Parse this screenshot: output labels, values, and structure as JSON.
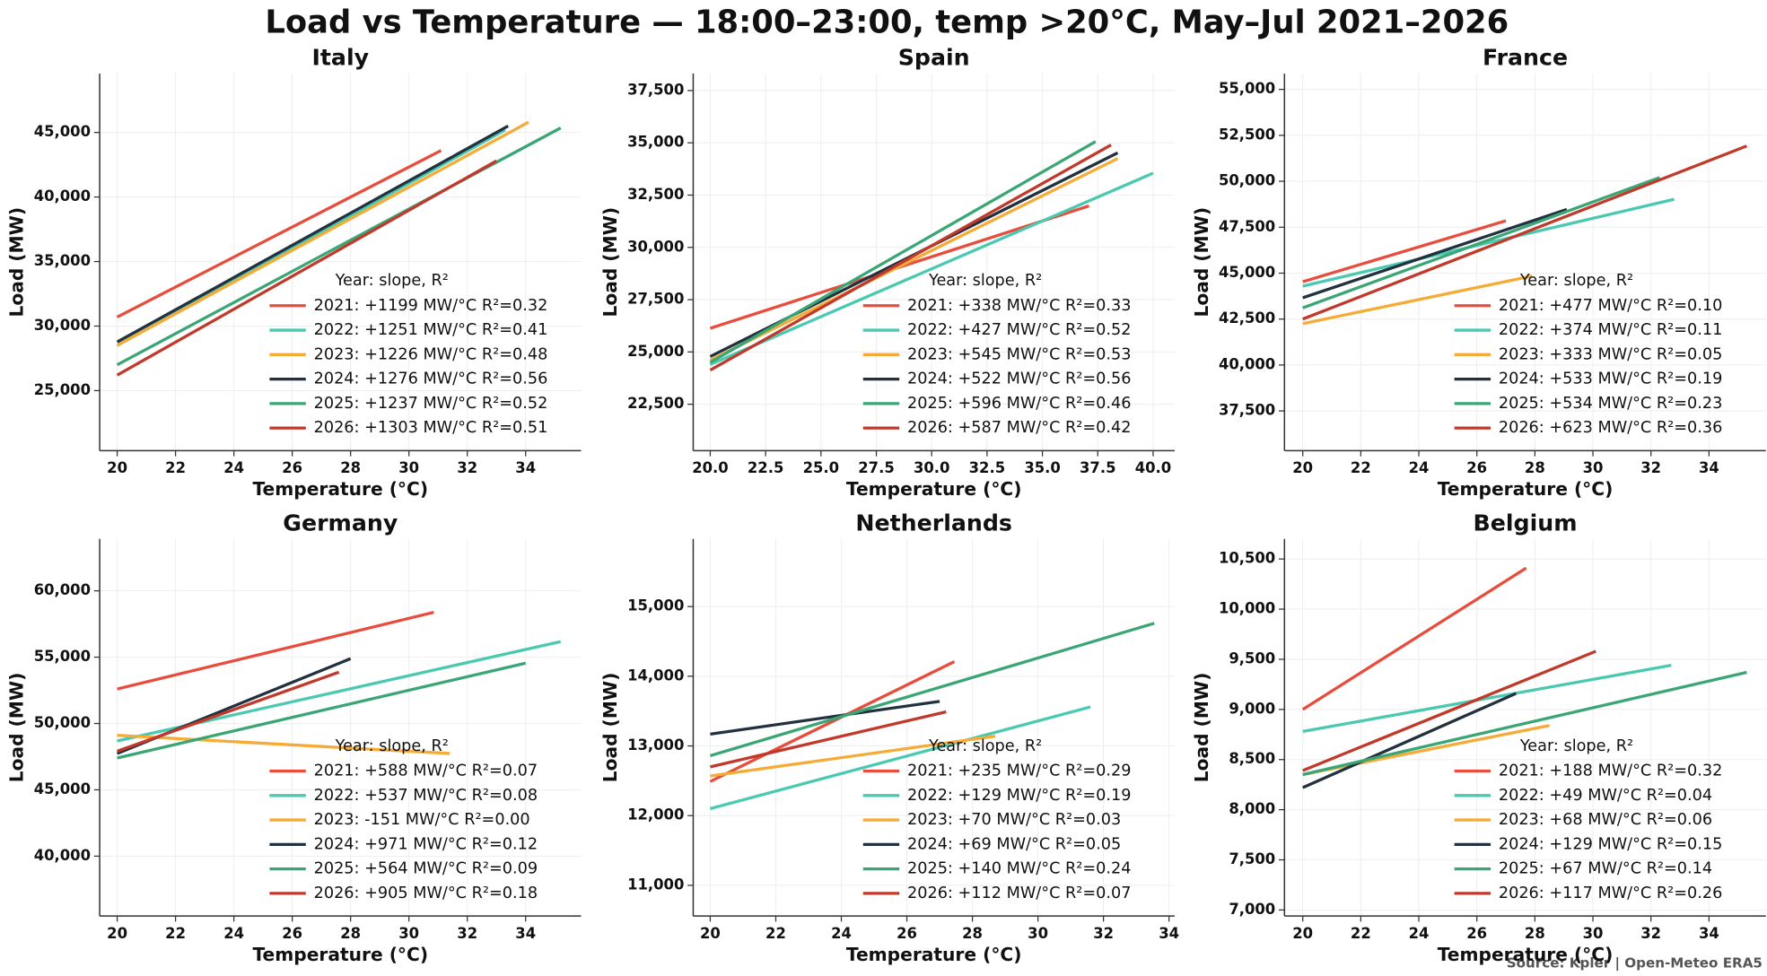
{
  "title": "Load vs Temperature — 18:00–23:00, temp >20°C, May–Jul 2021–2026",
  "source": "Source: Kpler | Open-Meteo ERA5",
  "chart_data": [
    {
      "type": "line",
      "title": "Italy",
      "xlabel": "Temperature (°C)",
      "ylabel": "Load (MW)",
      "xlim": [
        19.4,
        35.9
      ],
      "ylim": [
        20350,
        49560
      ],
      "xticks": [
        20,
        22,
        24,
        26,
        28,
        30,
        32,
        34
      ],
      "yticks": [
        {
          "value": 25000,
          "label": "25,000"
        },
        {
          "value": 30000,
          "label": "30,000"
        },
        {
          "value": 35000,
          "label": "35,000"
        },
        {
          "value": 40000,
          "label": "40,000"
        },
        {
          "value": 45000,
          "label": "45,000"
        }
      ],
      "grid": true,
      "legend": "lower right",
      "legend_title": "Year: slope, R²",
      "series": [
        {
          "name": "2021: +1199 MW/°C  R²=0.32",
          "color": "#e74c3c",
          "x": [
            20.0,
            31.1
          ],
          "values": [
            30700,
            43600
          ]
        },
        {
          "name": "2022: +1251 MW/°C  R²=0.41",
          "color": "#48c9b0",
          "x": [
            20.0,
            33.3
          ],
          "values": [
            28500,
            45200
          ]
        },
        {
          "name": "2023: +1226 MW/°C  R²=0.48",
          "color": "#f5ab35",
          "x": [
            20.0,
            34.1
          ],
          "values": [
            28500,
            45800
          ]
        },
        {
          "name": "2024: +1276 MW/°C  R²=0.56",
          "color": "#22313f",
          "x": [
            20.0,
            33.4
          ],
          "values": [
            28770,
            45500
          ]
        },
        {
          "name": "2025: +1237 MW/°C  R²=0.52",
          "color": "#3aa675",
          "x": [
            20.0,
            35.2
          ],
          "values": [
            27000,
            45350
          ]
        },
        {
          "name": "2026: +1303 MW/°C  R²=0.51",
          "color": "#c0392b",
          "x": [
            20.0,
            33.0
          ],
          "values": [
            26200,
            42800
          ]
        }
      ]
    },
    {
      "type": "line",
      "title": "Spain",
      "xlabel": "Temperature (°C)",
      "ylabel": "Load (MW)",
      "xlim": [
        19.23,
        40.97
      ],
      "ylim": [
        20280,
        38310
      ],
      "xticks": [
        {
          "value": 20,
          "label": "20.0"
        },
        {
          "value": 22.5,
          "label": "22.5"
        },
        {
          "value": 25,
          "label": "25.0"
        },
        {
          "value": 27.5,
          "label": "27.5"
        },
        {
          "value": 30,
          "label": "30.0"
        },
        {
          "value": 32.5,
          "label": "32.5"
        },
        {
          "value": 35,
          "label": "35.0"
        },
        {
          "value": 37.5,
          "label": "37.5"
        },
        {
          "value": 40,
          "label": "40.0"
        }
      ],
      "yticks": [
        {
          "value": 22500,
          "label": "22,500"
        },
        {
          "value": 25000,
          "label": "25,000"
        },
        {
          "value": 27500,
          "label": "27,500"
        },
        {
          "value": 30000,
          "label": "30,000"
        },
        {
          "value": 32500,
          "label": "32,500"
        },
        {
          "value": 35000,
          "label": "35,000"
        },
        {
          "value": 37500,
          "label": "37,500"
        }
      ],
      "grid": true,
      "legend": "lower right",
      "legend_title": "Year: slope, R²",
      "series": [
        {
          "name": "2021: +338 MW/°C  R²=0.33",
          "color": "#e74c3c",
          "x": [
            20.0,
            37.1
          ],
          "values": [
            26130,
            31980
          ]
        },
        {
          "name": "2022: +427 MW/°C  R²=0.52",
          "color": "#48c9b0",
          "x": [
            20.0,
            40.0
          ],
          "values": [
            24400,
            33550
          ]
        },
        {
          "name": "2023: +545 MW/°C  R²=0.53",
          "color": "#f5ab35",
          "x": [
            20.0,
            38.4
          ],
          "values": [
            24610,
            34250
          ]
        },
        {
          "name": "2024: +522 MW/°C  R²=0.56",
          "color": "#22313f",
          "x": [
            20.0,
            38.4
          ],
          "values": [
            24780,
            34520
          ]
        },
        {
          "name": "2025: +596 MW/°C  R²=0.46",
          "color": "#3aa675",
          "x": [
            20.0,
            37.4
          ],
          "values": [
            24500,
            35060
          ]
        },
        {
          "name": "2026: +587 MW/°C  R²=0.42",
          "color": "#c0392b",
          "x": [
            20.0,
            38.1
          ],
          "values": [
            24130,
            34900
          ]
        }
      ]
    },
    {
      "type": "line",
      "title": "France",
      "xlabel": "Temperature (°C)",
      "ylabel": "Load (MW)",
      "xlim": [
        19.37,
        35.96
      ],
      "ylim": [
        35340,
        55860
      ],
      "xticks": [
        20,
        22,
        24,
        26,
        28,
        30,
        32,
        34
      ],
      "yticks": [
        {
          "value": 37500,
          "label": "37,500"
        },
        {
          "value": 40000,
          "label": "40,000"
        },
        {
          "value": 42500,
          "label": "42,500"
        },
        {
          "value": 45000,
          "label": "45,000"
        },
        {
          "value": 47500,
          "label": "47,500"
        },
        {
          "value": 50000,
          "label": "50,000"
        },
        {
          "value": 52500,
          "label": "52,500"
        },
        {
          "value": 55000,
          "label": "55,000"
        }
      ],
      "grid": true,
      "legend": "lower right",
      "legend_title": "Year: slope, R²",
      "series": [
        {
          "name": "2021: +477 MW/°C  R²=0.10",
          "color": "#e74c3c",
          "x": [
            20.0,
            27.0
          ],
          "values": [
            44530,
            47850
          ]
        },
        {
          "name": "2022: +374 MW/°C  R²=0.11",
          "color": "#48c9b0",
          "x": [
            20.0,
            32.8
          ],
          "values": [
            44290,
            49020
          ]
        },
        {
          "name": "2023: +333 MW/°C  R²=0.05",
          "color": "#f5ab35",
          "x": [
            20.0,
            27.9
          ],
          "values": [
            42250,
            44840
          ]
        },
        {
          "name": "2024: +533 MW/°C  R²=0.19",
          "color": "#22313f",
          "x": [
            20.0,
            29.1
          ],
          "values": [
            43660,
            48470
          ]
        },
        {
          "name": "2025: +534 MW/°C  R²=0.23",
          "color": "#3aa675",
          "x": [
            20.0,
            32.3
          ],
          "values": [
            43110,
            50200
          ]
        },
        {
          "name": "2026: +623 MW/°C  R²=0.36",
          "color": "#c0392b",
          "x": [
            20.0,
            35.3
          ],
          "values": [
            42500,
            51920
          ]
        }
      ]
    },
    {
      "type": "line",
      "title": "Germany",
      "xlabel": "Temperature (°C)",
      "ylabel": "Load (MW)",
      "xlim": [
        19.4,
        35.9
      ],
      "ylim": [
        35490,
        63910
      ],
      "xticks": [
        20,
        22,
        24,
        26,
        28,
        30,
        32,
        34
      ],
      "yticks": [
        {
          "value": 40000,
          "label": "40,000"
        },
        {
          "value": 45000,
          "label": "45,000"
        },
        {
          "value": 50000,
          "label": "50,000"
        },
        {
          "value": 55000,
          "label": "55,000"
        },
        {
          "value": 60000,
          "label": "60,000"
        }
      ],
      "grid": true,
      "legend": "lower right",
      "legend_title": "Year: slope, R²",
      "series": [
        {
          "name": "2021: +588 MW/°C  R²=0.07",
          "color": "#e74c3c",
          "x": [
            20.0,
            30.85
          ],
          "values": [
            52600,
            58380
          ]
        },
        {
          "name": "2022: +537 MW/°C  R²=0.08",
          "color": "#48c9b0",
          "x": [
            20.0,
            35.2
          ],
          "values": [
            48680,
            56170
          ]
        },
        {
          "name": "2023: -151 MW/°C  R²=0.00",
          "color": "#f5ab35",
          "x": [
            20.0,
            31.4
          ],
          "values": [
            49110,
            47740
          ]
        },
        {
          "name": "2024: +971 MW/°C  R²=0.12",
          "color": "#22313f",
          "x": [
            20.0,
            28.0
          ],
          "values": [
            47740,
            54890
          ]
        },
        {
          "name": "2025: +564 MW/°C  R²=0.09",
          "color": "#3aa675",
          "x": [
            20.0,
            34.0
          ],
          "values": [
            47400,
            54550
          ]
        },
        {
          "name": "2026: +905 MW/°C  R²=0.18",
          "color": "#c0392b",
          "x": [
            20.0,
            27.6
          ],
          "values": [
            47910,
            53870
          ]
        }
      ]
    },
    {
      "type": "line",
      "title": "Netherlands",
      "xlabel": "Temperature (°C)",
      "ylabel": "Load (MW)",
      "xlim": [
        19.48,
        34.17
      ],
      "ylim": [
        10560,
        15970
      ],
      "xticks": [
        20,
        22,
        24,
        26,
        28,
        30,
        32,
        34
      ],
      "yticks": [
        {
          "value": 11000,
          "label": "11,000"
        },
        {
          "value": 12000,
          "label": "12,000"
        },
        {
          "value": 13000,
          "label": "13,000"
        },
        {
          "value": 14000,
          "label": "14,000"
        },
        {
          "value": 15000,
          "label": "15,000"
        }
      ],
      "grid": true,
      "legend": "lower right",
      "legend_title": "Year: slope, R²",
      "series": [
        {
          "name": "2021: +235 MW/°C  R²=0.29",
          "color": "#e74c3c",
          "x": [
            20.0,
            27.45
          ],
          "values": [
            12490,
            14210
          ]
        },
        {
          "name": "2022: +129 MW/°C  R²=0.19",
          "color": "#48c9b0",
          "x": [
            20.0,
            31.6
          ],
          "values": [
            12100,
            13560
          ]
        },
        {
          "name": "2023: +70 MW/°C  R²=0.03",
          "color": "#f5ab35",
          "x": [
            20.0,
            28.7
          ],
          "values": [
            12570,
            13140
          ]
        },
        {
          "name": "2024: +69 MW/°C  R²=0.05",
          "color": "#22313f",
          "x": [
            20.0,
            27.0
          ],
          "values": [
            13170,
            13640
          ]
        },
        {
          "name": "2025: +140 MW/°C  R²=0.24",
          "color": "#3aa675",
          "x": [
            20.0,
            33.55
          ],
          "values": [
            12860,
            14760
          ]
        },
        {
          "name": "2026: +112 MW/°C  R²=0.07",
          "color": "#c0392b",
          "x": [
            20.0,
            27.2
          ],
          "values": [
            12700,
            13490
          ]
        }
      ]
    },
    {
      "type": "line",
      "title": "Belgium",
      "xlabel": "Temperature (°C)",
      "ylabel": "Load (MW)",
      "xlim": [
        19.37,
        35.96
      ],
      "ylim": [
        6940,
        10700
      ],
      "xticks": [
        20,
        22,
        24,
        26,
        28,
        30,
        32,
        34
      ],
      "yticks": [
        {
          "value": 7000,
          "label": "7,000"
        },
        {
          "value": 7500,
          "label": "7,500"
        },
        {
          "value": 8000,
          "label": "8,000"
        },
        {
          "value": 8500,
          "label": "8,500"
        },
        {
          "value": 9000,
          "label": "9,000"
        },
        {
          "value": 9500,
          "label": "9,500"
        },
        {
          "value": 10000,
          "label": "10,000"
        },
        {
          "value": 10500,
          "label": "10,500"
        }
      ],
      "grid": true,
      "legend": "lower right",
      "legend_title": "Year: slope, R²",
      "series": [
        {
          "name": "2021: +188 MW/°C  R²=0.32",
          "color": "#e74c3c",
          "x": [
            20.0,
            27.7
          ],
          "values": [
            9000,
            10410
          ]
        },
        {
          "name": "2022: +49 MW/°C  R²=0.04",
          "color": "#48c9b0",
          "x": [
            20.0,
            32.7
          ],
          "values": [
            8780,
            9440
          ]
        },
        {
          "name": "2023: +68 MW/°C  R²=0.06",
          "color": "#f5ab35",
          "x": [
            20.0,
            28.5
          ],
          "values": [
            8350,
            8840
          ]
        },
        {
          "name": "2024: +129 MW/°C  R²=0.15",
          "color": "#22313f",
          "x": [
            20.0,
            27.35
          ],
          "values": [
            8220,
            9160
          ]
        },
        {
          "name": "2025: +67 MW/°C  R²=0.14",
          "color": "#3aa675",
          "x": [
            20.0,
            35.3
          ],
          "values": [
            8350,
            9370
          ]
        },
        {
          "name": "2026: +117 MW/°C  R²=0.26",
          "color": "#c0392b",
          "x": [
            20.0,
            30.1
          ],
          "values": [
            8390,
            9580
          ]
        }
      ]
    }
  ]
}
